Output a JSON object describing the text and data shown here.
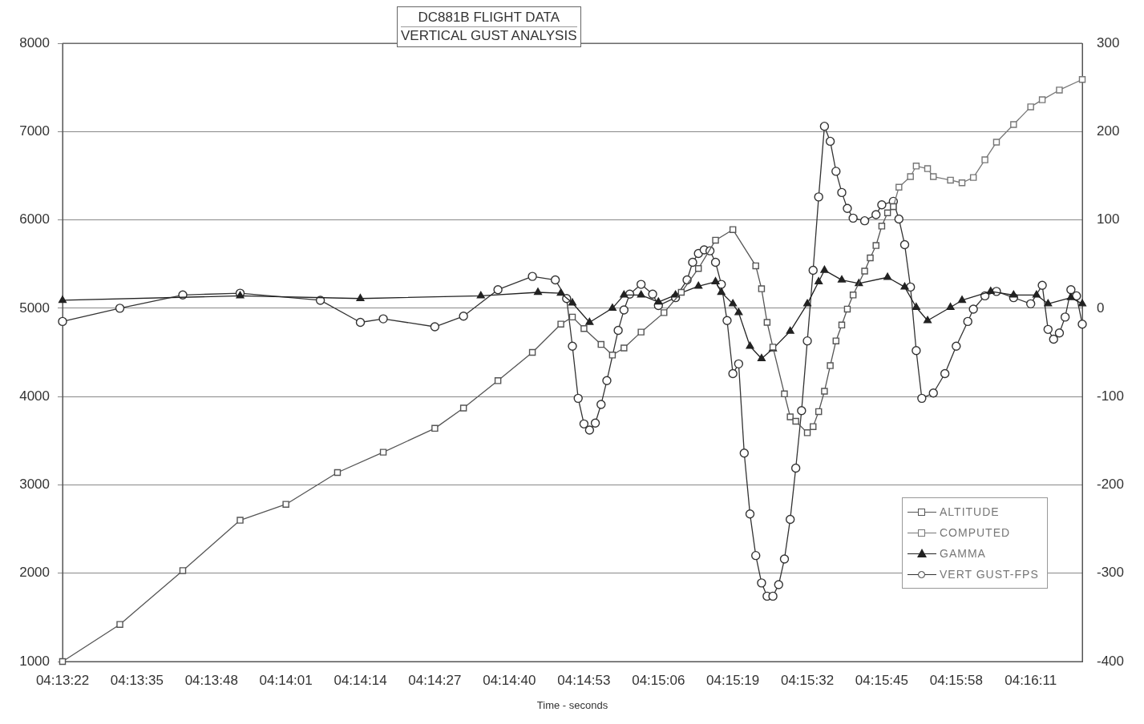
{
  "chart_data": {
    "type": "line",
    "title": "DC881B FLIGHT DATA",
    "subtitle": "VERTICAL GUST ANALYSIS",
    "xlabel": "Time - seconds",
    "xlim": [
      4.22278,
      4.27222
    ],
    "xticks": [
      {
        "value": 4.22278,
        "label": "04:13:22"
      },
      {
        "value": 4.22639,
        "label": "04:13:35"
      },
      {
        "value": 4.23,
        "label": "04:13:48"
      },
      {
        "value": 4.23361,
        "label": "04:14:01"
      },
      {
        "value": 4.23722,
        "label": "04:14:14"
      },
      {
        "value": 4.24083,
        "label": "04:14:27"
      },
      {
        "value": 4.24444,
        "label": "04:14:40"
      },
      {
        "value": 4.24806,
        "label": "04:14:53"
      },
      {
        "value": 4.25167,
        "label": "04:15:06"
      },
      {
        "value": 4.25528,
        "label": "04:15:19"
      },
      {
        "value": 4.25889,
        "label": "04:15:32"
      },
      {
        "value": 4.2625,
        "label": "04:15:45"
      },
      {
        "value": 4.26611,
        "label": "04:15:58"
      },
      {
        "value": 4.26972,
        "label": "04:16:11"
      }
    ],
    "ylim": [
      1000,
      8000
    ],
    "yticks": [
      1000,
      2000,
      3000,
      4000,
      5000,
      6000,
      7000,
      8000
    ],
    "y2lim": [
      -400,
      300
    ],
    "y2ticks": [
      -400,
      -300,
      -200,
      -100,
      0,
      100,
      200,
      300
    ],
    "grid": "y",
    "legend": "bottom right",
    "line_style": "solid",
    "series": [
      {
        "name": "ALTITUDE",
        "color": "#555555",
        "marker": "square",
        "x": [
          4.22278,
          4.22556,
          4.22861,
          4.23139,
          4.23361,
          4.23611,
          4.23833,
          4.24083,
          4.24222,
          4.24389,
          4.24556,
          4.24694,
          4.2475,
          4.24806,
          4.24889,
          4.24944,
          4.25,
          4.25083,
          4.25194,
          4.25278,
          4.25361,
          4.25444,
          4.25528,
          4.25639,
          4.25667,
          4.25694,
          4.25722,
          4.25778,
          4.25806,
          4.25833,
          4.25889,
          4.25917,
          4.25944,
          4.25972,
          4.26,
          4.26028,
          4.26056,
          4.26083,
          4.26111,
          4.26167,
          4.26194,
          4.26222,
          4.2625,
          4.26278,
          4.26306
        ],
        "values": [
          1000,
          1420,
          2030,
          2600,
          2780,
          3140,
          3370,
          3640,
          3870,
          4180,
          4500,
          4820,
          4900,
          4770,
          4590,
          4470,
          4550,
          4730,
          4950,
          5180,
          5450,
          5770,
          5890,
          5480,
          5220,
          4840,
          4560,
          4030,
          3770,
          3720,
          3590,
          3660,
          3830,
          4060,
          4350,
          4630,
          4810,
          4990,
          5150,
          5420,
          5570,
          5710,
          5930,
          6080,
          6150
        ]
      },
      {
        "name": "COMPUTED",
        "color": "#777777",
        "marker": "square",
        "x": [
          4.26306,
          4.26333,
          4.26389,
          4.26417,
          4.26472,
          4.265,
          4.26583,
          4.26639,
          4.26694,
          4.2675,
          4.26806,
          4.26889,
          4.26972,
          4.27028,
          4.27111,
          4.27222
        ],
        "values": [
          6150,
          6370,
          6490,
          6610,
          6580,
          6490,
          6450,
          6420,
          6480,
          6680,
          6880,
          7080,
          7280,
          7360,
          7470,
          7590
        ]
      },
      {
        "name": "GAMMA",
        "color": "#222222",
        "marker": "triangle",
        "axis": "y2",
        "x": [
          4.22278,
          4.23139,
          4.23722,
          4.24306,
          4.24583,
          4.24694,
          4.2475,
          4.24833,
          4.24944,
          4.25,
          4.25083,
          4.25167,
          4.2525,
          4.25361,
          4.25444,
          4.25472,
          4.25528,
          4.25556,
          4.25611,
          4.25667,
          4.25722,
          4.25806,
          4.25889,
          4.25944,
          4.25972,
          4.26056,
          4.26139,
          4.26278,
          4.26361,
          4.26417,
          4.26472,
          4.26583,
          4.26639,
          4.26778,
          4.26889,
          4.27,
          4.27056,
          4.27167,
          4.27222
        ],
        "values": [
          9,
          14,
          11,
          14,
          18,
          17,
          6,
          -16,
          0,
          15,
          15,
          7,
          15,
          25,
          30,
          18,
          5,
          -5,
          -43,
          -57,
          -46,
          -26,
          5,
          30,
          43,
          32,
          28,
          35,
          24,
          1,
          -14,
          1,
          9,
          19,
          15,
          15,
          5,
          12,
          5
        ]
      },
      {
        "name": "VERT GUST-FPS",
        "color": "#333333",
        "marker": "circle",
        "axis": "y2",
        "x": [
          4.22278,
          4.22556,
          4.22861,
          4.23139,
          4.23528,
          4.23722,
          4.23833,
          4.24083,
          4.24222,
          4.24389,
          4.24556,
          4.24667,
          4.24722,
          4.2475,
          4.24778,
          4.24806,
          4.24833,
          4.24861,
          4.24889,
          4.24917,
          4.24972,
          4.25,
          4.25028,
          4.25083,
          4.25139,
          4.25167,
          4.2525,
          4.25306,
          4.25333,
          4.25361,
          4.25389,
          4.25417,
          4.25444,
          4.25472,
          4.255,
          4.25528,
          4.25556,
          4.25583,
          4.25611,
          4.25639,
          4.25667,
          4.25694,
          4.25722,
          4.2575,
          4.25778,
          4.25806,
          4.25833,
          4.25861,
          4.25889,
          4.25917,
          4.25944,
          4.25972,
          4.26,
          4.26028,
          4.26056,
          4.26083,
          4.26111,
          4.26167,
          4.26222,
          4.2625,
          4.26306,
          4.26333,
          4.26361,
          4.26389,
          4.26417,
          4.26444,
          4.265,
          4.26556,
          4.26611,
          4.26667,
          4.26694,
          4.2675,
          4.26806,
          4.26889,
          4.26972,
          4.27028,
          4.27056,
          4.27083,
          4.27111,
          4.27139,
          4.27167,
          4.27194,
          4.27222
        ],
        "values": [
          -15,
          0,
          15,
          17,
          9,
          -16,
          -12,
          -21,
          -9,
          21,
          36,
          32,
          11,
          -43,
          -102,
          -131,
          -138,
          -130,
          -109,
          -82,
          -25,
          -2,
          16,
          27,
          16,
          3,
          12,
          32,
          52,
          62,
          66,
          65,
          52,
          27,
          -14,
          -74,
          -63,
          -164,
          -233,
          -280,
          -311,
          -326,
          -326,
          -313,
          -284,
          -239,
          -181,
          -116,
          -37,
          43,
          126,
          206,
          189,
          155,
          131,
          113,
          102,
          99,
          106,
          117,
          121,
          101,
          72,
          24,
          -48,
          -102,
          -96,
          -74,
          -43,
          -15,
          -1,
          14,
          19,
          12,
          5,
          26,
          -24,
          -35,
          -28,
          -10,
          21,
          14,
          -18
        ]
      }
    ]
  }
}
